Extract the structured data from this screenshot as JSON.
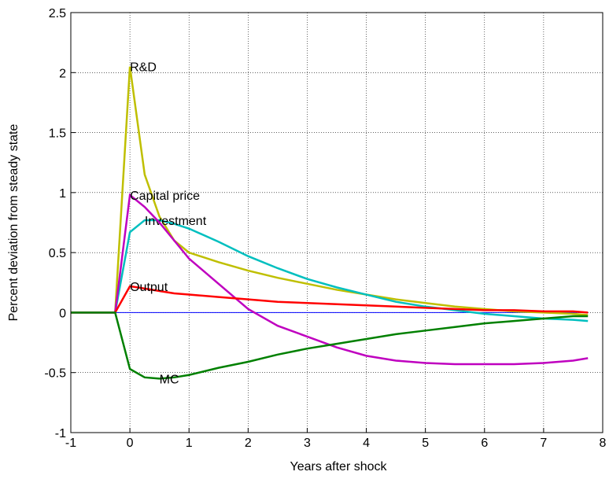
{
  "chart_data": {
    "type": "line",
    "xlabel": "Years after shock",
    "ylabel": "Percent deviation from steady state",
    "x": [
      -1,
      -0.25,
      0,
      0.25,
      0.5,
      0.75,
      1,
      1.5,
      2,
      2.5,
      3,
      3.5,
      4,
      4.5,
      5,
      5.5,
      6,
      6.5,
      7,
      7.5,
      7.75
    ],
    "series": [
      {
        "color": "#0000ff",
        "values": [
          0,
          0,
          0,
          0,
          0,
          0,
          0,
          0,
          0,
          0,
          0,
          0,
          0,
          0,
          0,
          0,
          0,
          0,
          0,
          0,
          0
        ]
      },
      {
        "name": "R&D",
        "color": "#bfbf00",
        "values": [
          0,
          0,
          2.05,
          1.15,
          0.8,
          0.6,
          0.5,
          0.42,
          0.35,
          0.29,
          0.24,
          0.19,
          0.15,
          0.11,
          0.08,
          0.05,
          0.03,
          0.01,
          0,
          -0.01,
          -0.02
        ]
      },
      {
        "name": "Investment",
        "color": "#00bfbf",
        "values": [
          0,
          0,
          0.67,
          0.77,
          0.77,
          0.74,
          0.7,
          0.59,
          0.47,
          0.37,
          0.28,
          0.21,
          0.15,
          0.09,
          0.05,
          0.02,
          -0.01,
          -0.03,
          -0.05,
          -0.06,
          -0.07
        ]
      },
      {
        "name": "Capital price",
        "color": "#bf00bf",
        "values": [
          0,
          0,
          0.98,
          0.88,
          0.75,
          0.6,
          0.45,
          0.24,
          0.03,
          -0.11,
          -0.2,
          -0.29,
          -0.36,
          -0.4,
          -0.42,
          -0.43,
          -0.43,
          -0.43,
          -0.42,
          -0.4,
          -0.38
        ]
      },
      {
        "name": "Output",
        "color": "#ff0000",
        "values": [
          0,
          0,
          0.22,
          0.2,
          0.18,
          0.16,
          0.15,
          0.13,
          0.11,
          0.09,
          0.08,
          0.07,
          0.06,
          0.05,
          0.04,
          0.03,
          0.02,
          0.02,
          0.01,
          0.01,
          0
        ]
      },
      {
        "name": "MC",
        "color": "#008000",
        "values": [
          0,
          0,
          -0.47,
          -0.54,
          -0.55,
          -0.54,
          -0.52,
          -0.46,
          -0.41,
          -0.35,
          -0.3,
          -0.26,
          -0.22,
          -0.18,
          -0.15,
          -0.12,
          -0.09,
          -0.07,
          -0.05,
          -0.03,
          -0.03
        ]
      }
    ],
    "xlim": [
      -1,
      8
    ],
    "xticks": [
      -1,
      0,
      1,
      2,
      3,
      4,
      5,
      6,
      7,
      8
    ],
    "ylim": [
      -1,
      2.5
    ],
    "yticks": [
      -1,
      -0.5,
      0,
      0.5,
      1,
      1.5,
      2,
      2.5
    ],
    "grid": true
  }
}
